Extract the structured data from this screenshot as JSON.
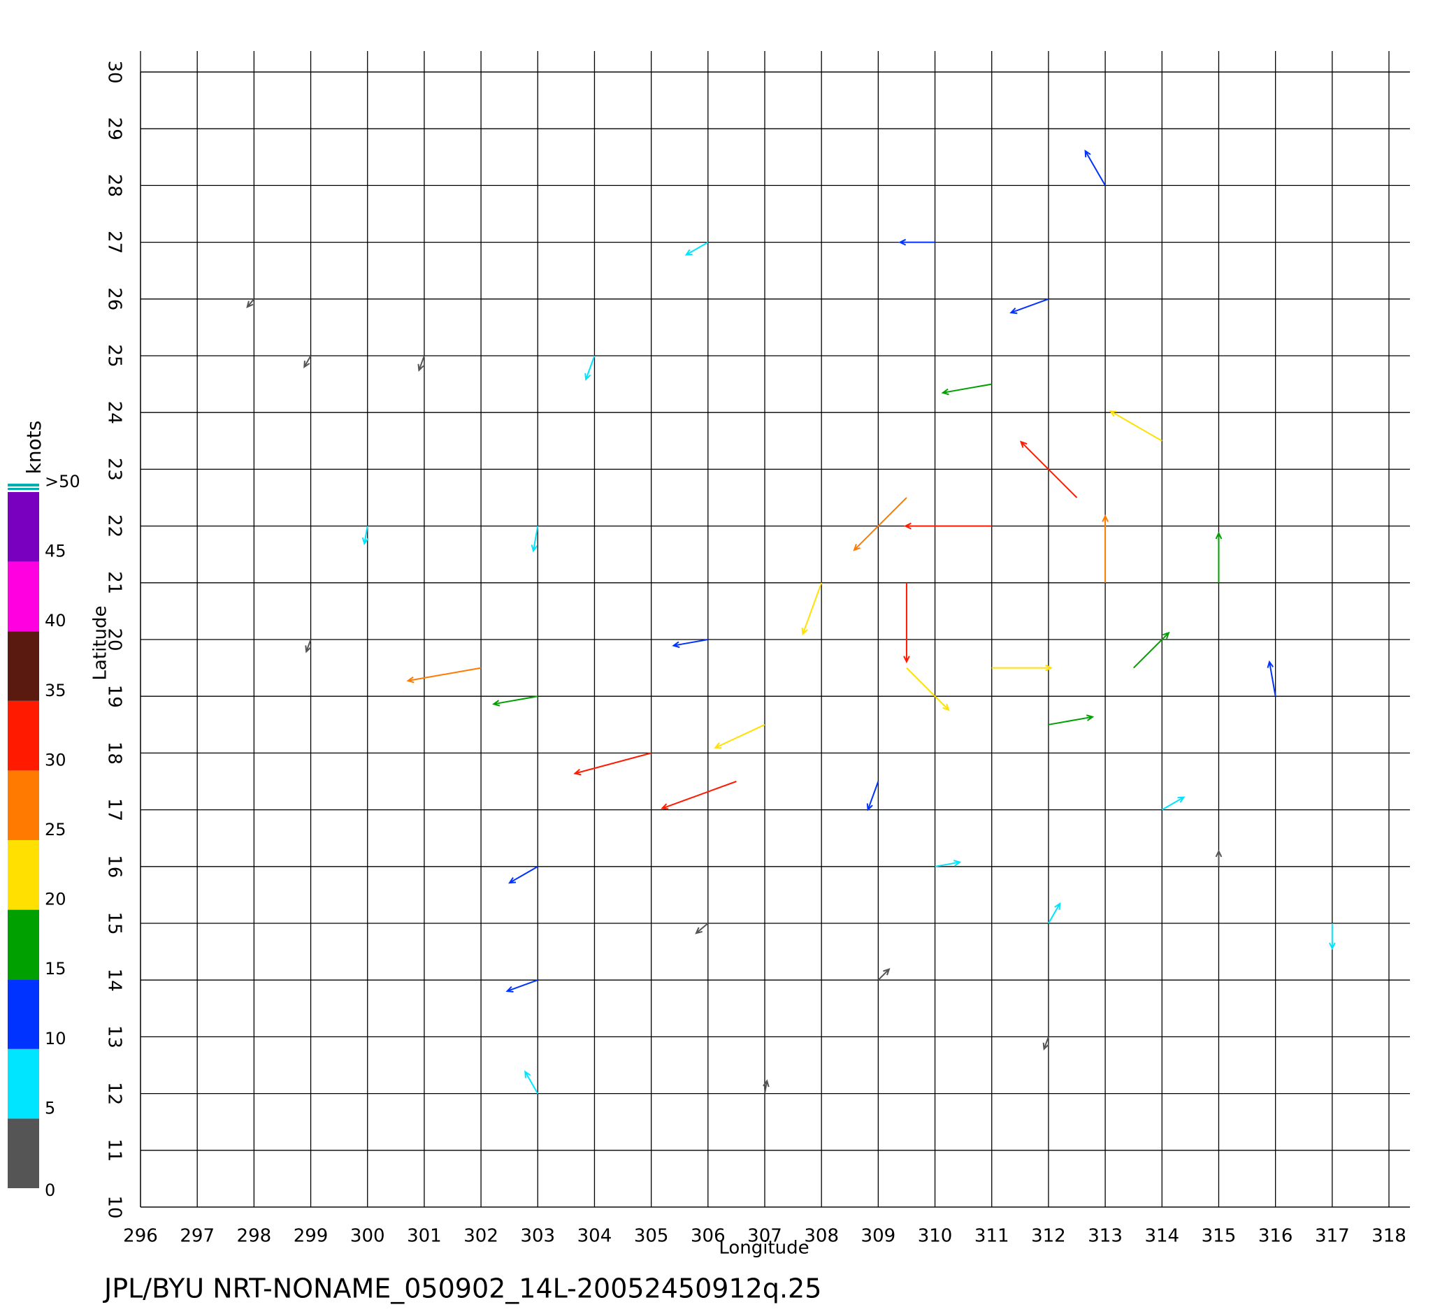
{
  "chart_data": {
    "type": "vector",
    "title": "JPL/BYU  NRT-NONAME_050902_14L-20052450912q.25",
    "x_label": "Longitude",
    "y_label": "Latitude",
    "xlim": [
      296,
      318
    ],
    "ylim": [
      10,
      30
    ],
    "xticks": [
      296,
      297,
      298,
      299,
      300,
      301,
      302,
      303,
      304,
      305,
      306,
      307,
      308,
      309,
      310,
      311,
      312,
      313,
      314,
      315,
      316,
      317,
      318
    ],
    "yticks": [
      10,
      11,
      12,
      13,
      14,
      15,
      16,
      17,
      18,
      19,
      20,
      21,
      22,
      23,
      24,
      25,
      26,
      27,
      28,
      29,
      30
    ],
    "grid": true,
    "colorbar": {
      "label": "knots",
      "ticks": [
        0,
        5,
        10,
        15,
        20,
        25,
        30,
        35,
        40,
        45,
        {
          "value": 50,
          "label": ">50"
        }
      ],
      "colors": [
        "#555555",
        "#00e5ff",
        "#0033ff",
        "#00a000",
        "#ffe000",
        "#ff7a00",
        "#ff1a00",
        "#5a1a10",
        "#ff00e0",
        "#7a00c0"
      ]
    },
    "vectors": [
      {
        "lon": 311,
        "lat": 22,
        "speed": 33,
        "dir": 270
      },
      {
        "lon": 313,
        "lat": 21,
        "speed": 25,
        "dir": 0
      },
      {
        "lon": 311,
        "lat": 19.5,
        "speed": 22,
        "dir": 90
      },
      {
        "lon": 309.5,
        "lat": 21,
        "speed": 30,
        "dir": 180
      },
      {
        "lon": 312.5,
        "lat": 22.5,
        "speed": 30,
        "dir": 315
      },
      {
        "lon": 309.5,
        "lat": 22.5,
        "speed": 28,
        "dir": 225
      },
      {
        "lon": 313.5,
        "lat": 19.5,
        "speed": 18,
        "dir": 45
      },
      {
        "lon": 309.5,
        "lat": 19.5,
        "speed": 22,
        "dir": 135
      },
      {
        "lon": 314,
        "lat": 23.5,
        "speed": 22,
        "dir": 300
      },
      {
        "lon": 311,
        "lat": 24.5,
        "speed": 18,
        "dir": 260
      },
      {
        "lon": 315,
        "lat": 21,
        "speed": 18,
        "dir": 0
      },
      {
        "lon": 312,
        "lat": 18.5,
        "speed": 16,
        "dir": 80
      },
      {
        "lon": 308,
        "lat": 21,
        "speed": 20,
        "dir": 200
      },
      {
        "lon": 312,
        "lat": 26,
        "speed": 14,
        "dir": 250
      },
      {
        "lon": 313,
        "lat": 28,
        "speed": 14,
        "dir": 330
      },
      {
        "lon": 310,
        "lat": 27,
        "speed": 12,
        "dir": 270
      },
      {
        "lon": 306,
        "lat": 27,
        "speed": 8,
        "dir": 240
      },
      {
        "lon": 304,
        "lat": 25,
        "speed": 8,
        "dir": 200
      },
      {
        "lon": 301,
        "lat": 25,
        "speed": 4,
        "dir": 200
      },
      {
        "lon": 300,
        "lat": 22,
        "speed": 5,
        "dir": 190
      },
      {
        "lon": 303,
        "lat": 22,
        "speed": 8,
        "dir": 190
      },
      {
        "lon": 306,
        "lat": 20,
        "speed": 12,
        "dir": 260
      },
      {
        "lon": 305,
        "lat": 18,
        "speed": 30,
        "dir": 255
      },
      {
        "lon": 306.5,
        "lat": 17.5,
        "speed": 30,
        "dir": 250
      },
      {
        "lon": 303,
        "lat": 19,
        "speed": 16,
        "dir": 260
      },
      {
        "lon": 302,
        "lat": 19.5,
        "speed": 28,
        "dir": 260
      },
      {
        "lon": 307,
        "lat": 18.5,
        "speed": 20,
        "dir": 245
      },
      {
        "lon": 309,
        "lat": 17.5,
        "speed": 10,
        "dir": 200
      },
      {
        "lon": 303,
        "lat": 16,
        "speed": 11,
        "dir": 240
      },
      {
        "lon": 306,
        "lat": 15,
        "speed": 4,
        "dir": 230
      },
      {
        "lon": 309,
        "lat": 14,
        "speed": 4,
        "dir": 45
      },
      {
        "lon": 312,
        "lat": 15,
        "speed": 7,
        "dir": 30
      },
      {
        "lon": 315,
        "lat": 16,
        "speed": 4,
        "dir": 0
      },
      {
        "lon": 317,
        "lat": 15,
        "speed": 8,
        "dir": 180
      },
      {
        "lon": 316,
        "lat": 19,
        "speed": 12,
        "dir": 350
      },
      {
        "lon": 314,
        "lat": 17,
        "speed": 8,
        "dir": 60
      },
      {
        "lon": 303,
        "lat": 12,
        "speed": 8,
        "dir": 330
      },
      {
        "lon": 307,
        "lat": 12,
        "speed": 3,
        "dir": 10
      },
      {
        "lon": 312,
        "lat": 13,
        "speed": 3,
        "dir": 200
      },
      {
        "lon": 299,
        "lat": 20,
        "speed": 3,
        "dir": 200
      },
      {
        "lon": 299,
        "lat": 25,
        "speed": 3,
        "dir": 210
      },
      {
        "lon": 298,
        "lat": 26,
        "speed": 2,
        "dir": 220
      },
      {
        "lon": 303,
        "lat": 14,
        "speed": 11,
        "dir": 250
      },
      {
        "lon": 310,
        "lat": 16,
        "speed": 8,
        "dir": 80
      }
    ]
  }
}
